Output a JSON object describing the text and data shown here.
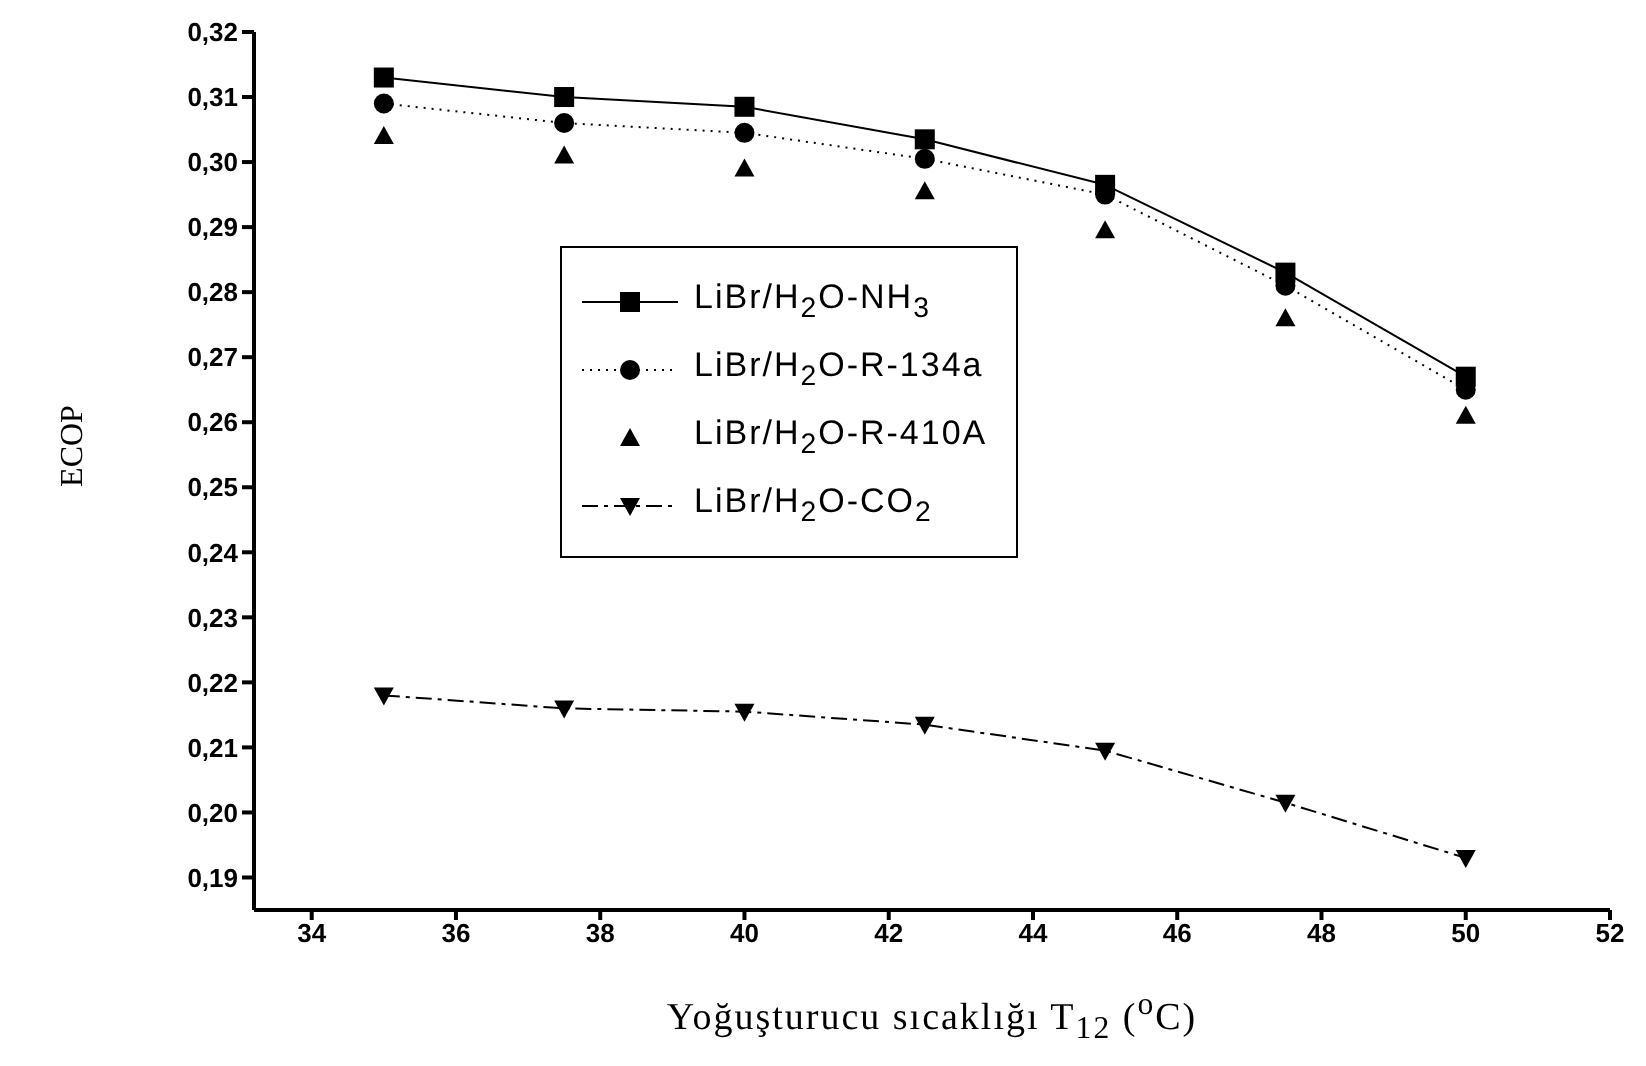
{
  "chart_data": {
    "type": "line",
    "xlabel": "Yoğuşturucu sıcaklığı T$_{12}$ ($^{o}$C)",
    "ylabel": "ECOP",
    "x": [
      35,
      37.5,
      40,
      42.5,
      45,
      47.5,
      50
    ],
    "xlim": [
      33.2,
      52
    ],
    "xticks": [
      34,
      36,
      38,
      40,
      42,
      44,
      46,
      48,
      50,
      52
    ],
    "ylim": [
      0.185,
      0.32
    ],
    "yticks": [
      {
        "value": 0.19,
        "label": "0,19"
      },
      {
        "value": 0.2,
        "label": "0,20"
      },
      {
        "value": 0.21,
        "label": "0,21"
      },
      {
        "value": 0.22,
        "label": "0,22"
      },
      {
        "value": 0.23,
        "label": "0,23"
      },
      {
        "value": 0.24,
        "label": "0,24"
      },
      {
        "value": 0.25,
        "label": "0,25"
      },
      {
        "value": 0.26,
        "label": "0,26"
      },
      {
        "value": 0.27,
        "label": "0,27"
      },
      {
        "value": 0.28,
        "label": "0,28"
      },
      {
        "value": 0.29,
        "label": "0,29"
      },
      {
        "value": 0.3,
        "label": "0,30"
      },
      {
        "value": 0.31,
        "label": "0,31"
      },
      {
        "value": 0.32,
        "label": "0,32"
      }
    ],
    "legend": "center",
    "series": [
      {
        "name": "LiBr/H$_{2}$O-NH$_{3}$",
        "color": "#000000",
        "marker": "square",
        "line_style": "solid",
        "values": [
          0.313,
          0.31,
          0.3085,
          0.3035,
          0.2965,
          0.283,
          0.267
        ]
      },
      {
        "name": "LiBr/H$_{2}$O-R-134a",
        "color": "#000000",
        "marker": "circle",
        "line_style": "dotted",
        "values": [
          0.309,
          0.306,
          0.3045,
          0.3005,
          0.295,
          0.281,
          0.265
        ]
      },
      {
        "name": "LiBr/H$_{2}$O-R-410A",
        "color": "#000000",
        "type": "scatter",
        "marker": "triangle",
        "values": [
          0.304,
          0.301,
          0.299,
          0.2955,
          0.2895,
          0.276,
          0.261
        ]
      },
      {
        "name": "LiBr/H$_{2}$O-CO$_{2}$",
        "color": "#000000",
        "marker": "triangle-down",
        "line_style": "dashed",
        "values": [
          0.218,
          0.216,
          0.2155,
          0.2135,
          0.2095,
          0.2015,
          0.193
        ]
      }
    ]
  }
}
